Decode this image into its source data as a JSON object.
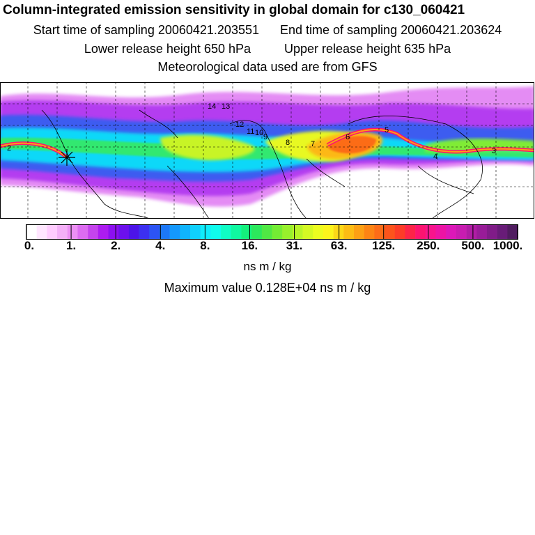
{
  "header": {
    "title": "Column-integrated emission sensitivity in global domain for c130_060421",
    "start_label": "Start time of sampling 20060421.203551",
    "end_label": "End time of sampling 20060421.203624",
    "lower_label": "Lower release height  650 hPa",
    "upper_label": "Upper release height  635 hPa",
    "met_label": "Meteorological data used are from GFS"
  },
  "map": {
    "type": "heatmap",
    "projection": "equirectangular global domain",
    "grid": "dashed",
    "release_marker": "asterisk",
    "trajectory_labels": [
      "2",
      "14",
      "13",
      "12",
      "11",
      "10",
      "9",
      "8",
      "7",
      "6",
      "5",
      "4",
      "3"
    ]
  },
  "colorbar": {
    "tick_labels": [
      "0.",
      "1.",
      "2.",
      "4.",
      "8.",
      "16.",
      "31.",
      "63.",
      "125.",
      "250.",
      "500.",
      "1000."
    ],
    "colors": [
      "#ffffff",
      "#ffe6ff",
      "#ffccff",
      "#f4b0f8",
      "#ec90f4",
      "#dc6cf0",
      "#c444ec",
      "#ac1cf0",
      "#8c10f0",
      "#6c10ec",
      "#4c14e8",
      "#3c30f0",
      "#2c54f4",
      "#1c78f8",
      "#1498fc",
      "#10b4fc",
      "#10d0fc",
      "#10ecfc",
      "#10fcec",
      "#10fcc4",
      "#10f8a0",
      "#14f07c",
      "#2ce85c",
      "#50e844",
      "#74ec34",
      "#98f02c",
      "#b8f428",
      "#d4f824",
      "#ecfc20",
      "#fcf41c",
      "#fcd818",
      "#fcbc14",
      "#fca014",
      "#fc8414",
      "#fc6c18",
      "#fc541c",
      "#fc3c28",
      "#fc2448",
      "#fc1470",
      "#f8148c",
      "#ec14a4",
      "#dc18b8",
      "#c81cb0",
      "#b01ca4",
      "#981c98",
      "#801c88",
      "#681c78",
      "#501c60"
    ]
  },
  "units_label": "ns m / kg",
  "max_label": "Maximum value  0.128E+04 ns m / kg"
}
